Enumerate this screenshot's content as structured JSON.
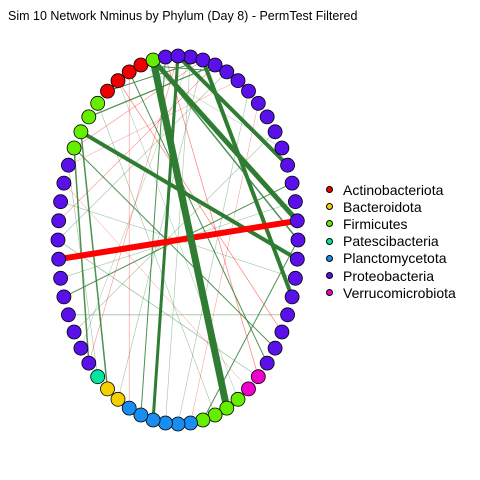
{
  "title": "Sim 10 Network Nminus by Phylum (Day 8) - PermTest Filtered",
  "legend": [
    {
      "label": "Actinobacteriota",
      "color": "#ee0000"
    },
    {
      "label": "Bacteroidota",
      "color": "#f5d000"
    },
    {
      "label": "Firmicutes",
      "color": "#66ee00"
    },
    {
      "label": "Patescibacteria",
      "color": "#00e6a0"
    },
    {
      "label": "Planctomycetota",
      "color": "#1a8ef0"
    },
    {
      "label": "Proteobacteria",
      "color": "#5a10e8"
    },
    {
      "label": "Verrucomicrobiota",
      "color": "#ee00cc"
    }
  ],
  "chart_data": {
    "type": "network",
    "layout": "circle",
    "node_count": 60,
    "node_phyla": [
      "Proteobacteria",
      "Proteobacteria",
      "Proteobacteria",
      "Proteobacteria",
      "Proteobacteria",
      "Proteobacteria",
      "Proteobacteria",
      "Proteobacteria",
      "Proteobacteria",
      "Proteobacteria",
      "Proteobacteria",
      "Proteobacteria",
      "Proteobacteria",
      "Proteobacteria",
      "Proteobacteria",
      "Proteobacteria",
      "Proteobacteria",
      "Proteobacteria",
      "Proteobacteria",
      "Proteobacteria",
      "Proteobacteria",
      "Proteobacteria",
      "Verrucomicrobiota",
      "Verrucomicrobiota",
      "Firmicutes",
      "Firmicutes",
      "Firmicutes",
      "Firmicutes",
      "Planctomycetota",
      "Planctomycetota",
      "Planctomycetota",
      "Planctomycetota",
      "Planctomycetota",
      "Planctomycetota",
      "Bacteroidota",
      "Bacteroidota",
      "Patescibacteria",
      "Proteobacteria",
      "Proteobacteria",
      "Proteobacteria",
      "Proteobacteria",
      "Proteobacteria",
      "Proteobacteria",
      "Proteobacteria",
      "Proteobacteria",
      "Proteobacteria",
      "Proteobacteria",
      "Proteobacteria",
      "Proteobacteria",
      "Firmicutes",
      "Firmicutes",
      "Firmicutes",
      "Firmicutes",
      "Actinobacteriota",
      "Actinobacteriota",
      "Actinobacteriota",
      "Actinobacteriota",
      "Firmicutes",
      "Proteobacteria",
      "Proteobacteria"
    ],
    "edges": [
      {
        "from": 13,
        "to": 43,
        "weight": 6,
        "sign": "negative"
      },
      {
        "from": 57,
        "to": 13,
        "weight": 5,
        "sign": "positive"
      },
      {
        "from": 57,
        "to": 25,
        "weight": 7,
        "sign": "positive"
      },
      {
        "from": 50,
        "to": 15,
        "weight": 4,
        "sign": "positive"
      },
      {
        "from": 59,
        "to": 10,
        "weight": 4,
        "sign": "positive"
      },
      {
        "from": 1,
        "to": 17,
        "weight": 4,
        "sign": "positive"
      },
      {
        "from": 59,
        "to": 31,
        "weight": 3,
        "sign": "positive"
      },
      {
        "from": 50,
        "to": 35,
        "weight": 1.5,
        "sign": "positive"
      },
      {
        "from": 49,
        "to": 37,
        "weight": 1.5,
        "sign": "positive"
      },
      {
        "from": 57,
        "to": 14,
        "weight": 1.5,
        "sign": "positive"
      },
      {
        "from": 2,
        "to": 51,
        "weight": 1.2,
        "sign": "positive"
      },
      {
        "from": 1,
        "to": 53,
        "weight": 1,
        "sign": "positive"
      },
      {
        "from": 3,
        "to": 56,
        "weight": 1,
        "sign": "positive"
      },
      {
        "from": 58,
        "to": 32,
        "weight": 1,
        "sign": "positive"
      },
      {
        "from": 55,
        "to": 21,
        "weight": 1,
        "sign": "positive"
      },
      {
        "from": 49,
        "to": 20,
        "weight": 1,
        "sign": "positive"
      },
      {
        "from": 41,
        "to": 11,
        "weight": 1,
        "sign": "positive"
      },
      {
        "from": 40,
        "to": 18,
        "weight": 0.8,
        "sign": "positive"
      },
      {
        "from": 44,
        "to": 22,
        "weight": 0.8,
        "sign": "positive"
      },
      {
        "from": 14,
        "to": 27,
        "weight": 1,
        "sign": "positive"
      },
      {
        "from": 58,
        "to": 22,
        "weight": 0.8,
        "sign": "negative"
      },
      {
        "from": 54,
        "to": 19,
        "weight": 0.8,
        "sign": "negative"
      },
      {
        "from": 1,
        "to": 49,
        "weight": 0.6,
        "sign": "negative"
      },
      {
        "from": 59,
        "to": 37,
        "weight": 0.6,
        "sign": "negative"
      },
      {
        "from": 2,
        "to": 45,
        "weight": 0.6,
        "sign": "negative"
      },
      {
        "from": 55,
        "to": 33,
        "weight": 0.6,
        "sign": "negative"
      },
      {
        "from": 4,
        "to": 48,
        "weight": 0.5,
        "sign": "negative"
      },
      {
        "from": 47,
        "to": 23,
        "weight": 0.5,
        "sign": "negative"
      },
      {
        "from": 6,
        "to": 28,
        "weight": 0.5,
        "sign": "negative"
      },
      {
        "from": 3,
        "to": 44,
        "weight": 0.6,
        "sign": "positive"
      },
      {
        "from": 0,
        "to": 30,
        "weight": 0.6,
        "sign": "positive"
      },
      {
        "from": 5,
        "to": 29,
        "weight": 0.6,
        "sign": "positive"
      },
      {
        "from": 52,
        "to": 26,
        "weight": 0.6,
        "sign": "positive"
      },
      {
        "from": 48,
        "to": 36,
        "weight": 0.6,
        "sign": "positive"
      },
      {
        "from": 46,
        "to": 16,
        "weight": 0.6,
        "sign": "positive"
      },
      {
        "from": 42,
        "to": 12,
        "weight": 0.6,
        "sign": "positive"
      },
      {
        "from": 39,
        "to": 8,
        "weight": 0.6,
        "sign": "positive"
      },
      {
        "from": 1,
        "to": 34,
        "weight": 0.6,
        "sign": "positive"
      },
      {
        "from": 0,
        "to": 38,
        "weight": 0.5,
        "sign": "positive"
      },
      {
        "from": 56,
        "to": 9,
        "weight": 0.5,
        "sign": "positive"
      },
      {
        "from": 54,
        "to": 24,
        "weight": 0.5,
        "sign": "positive"
      }
    ]
  }
}
